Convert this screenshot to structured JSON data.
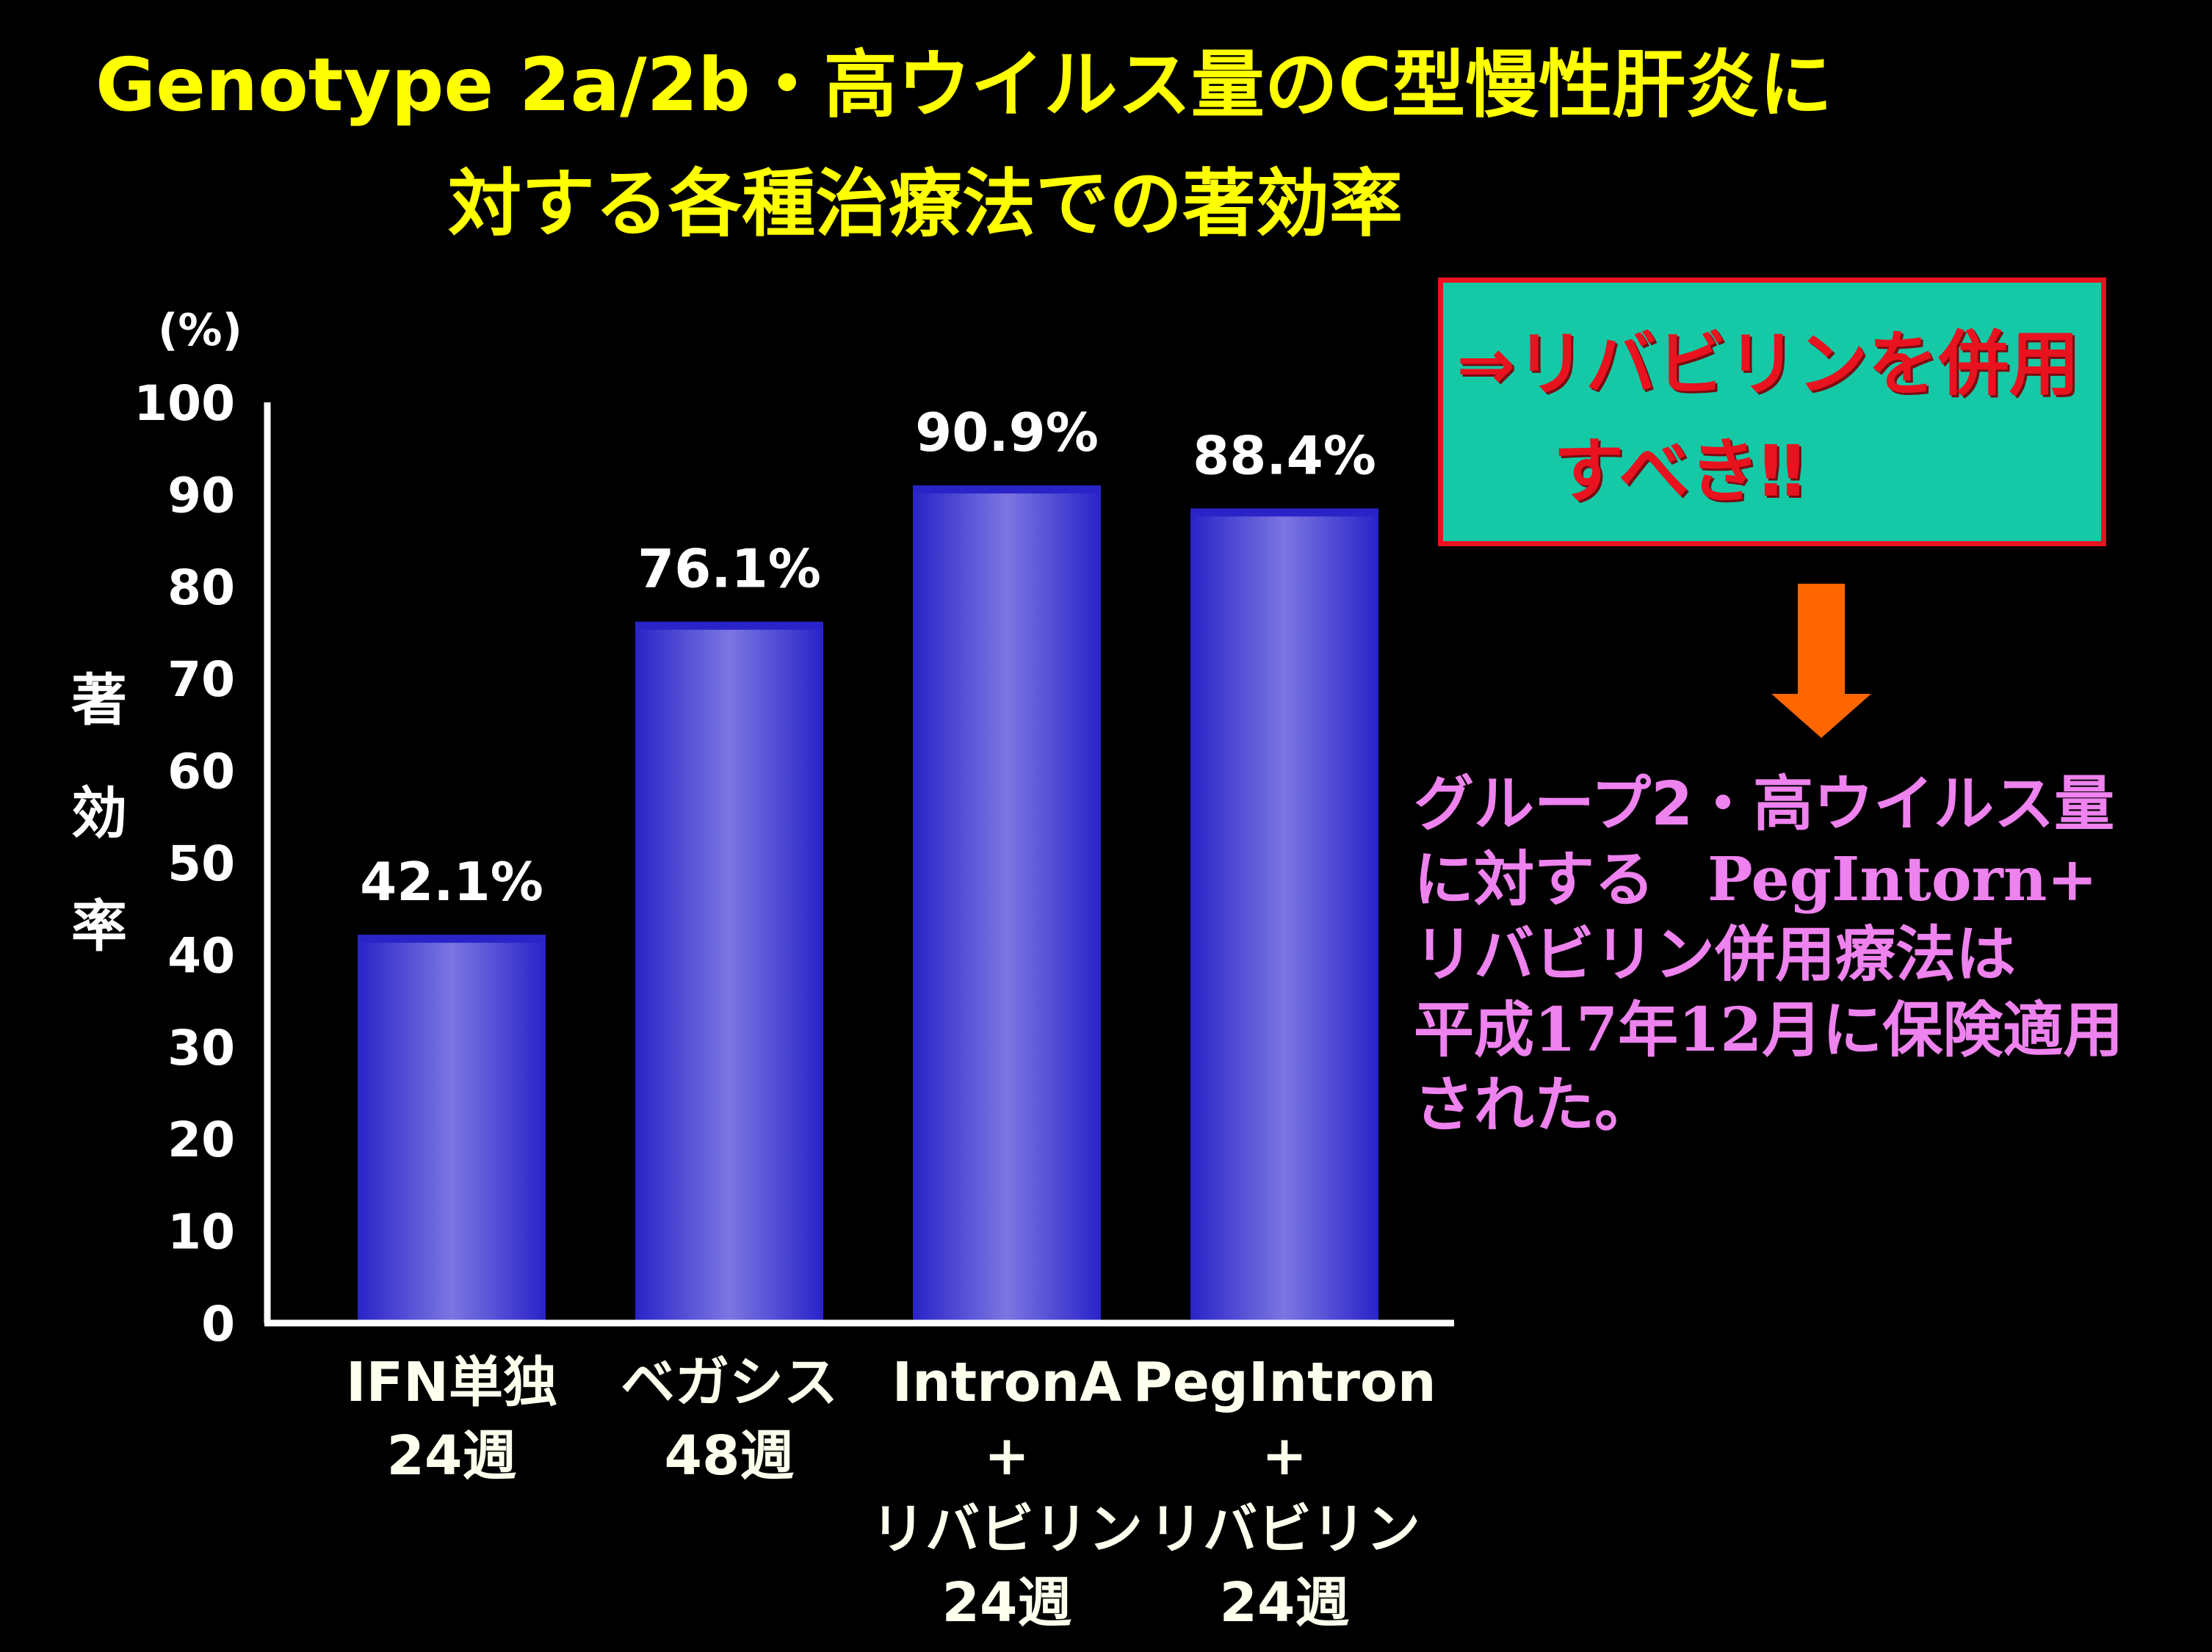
{
  "title": {
    "line1": "Genotype 2a/2b・高ウイルス量のC型慢性肝炎に",
    "line2": "対する各種治療法での著効率"
  },
  "chart_data": {
    "type": "bar",
    "unit_label": "(%)",
    "ylabel": "著効率",
    "ylim": [
      0,
      100
    ],
    "yticks": [
      "0",
      "10",
      "20",
      "30",
      "40",
      "50",
      "60",
      "70",
      "80",
      "90",
      "100"
    ],
    "categories": [
      [
        "IFN単独",
        "24週"
      ],
      [
        "ベガシス",
        "48週"
      ],
      [
        "IntronA",
        "+",
        "リバビリン",
        "24週"
      ],
      [
        "PegIntron",
        "+",
        "リバビリン",
        "24週"
      ]
    ],
    "values": [
      42.1,
      76.1,
      90.9,
      88.4
    ],
    "data_labels": [
      "42.1%",
      "76.1%",
      "90.9%",
      "88.4%"
    ],
    "bar_color": "#6A64DD",
    "bar_edge_color": "#2A24C8"
  },
  "callout": {
    "line1": "⇒リバビリンを併用",
    "line2": "すべき‼",
    "fill_color": "#15C9A6",
    "border_color": "#E8131F",
    "text_color": "#E8131F"
  },
  "arrow": {
    "color": "#FF6600"
  },
  "note": {
    "line1": "グループ2・高ウイルス量",
    "line2_pre": "に対する",
    "line2_product": "PegIntorn+",
    "line3": "リバビリン併用療法は",
    "line4_a": "平成",
    "line4_b": "17",
    "line4_c": "年",
    "line4_d": "12",
    "line4_e": "月に保険適用",
    "line5": "された。",
    "color": "#EE82EE"
  }
}
